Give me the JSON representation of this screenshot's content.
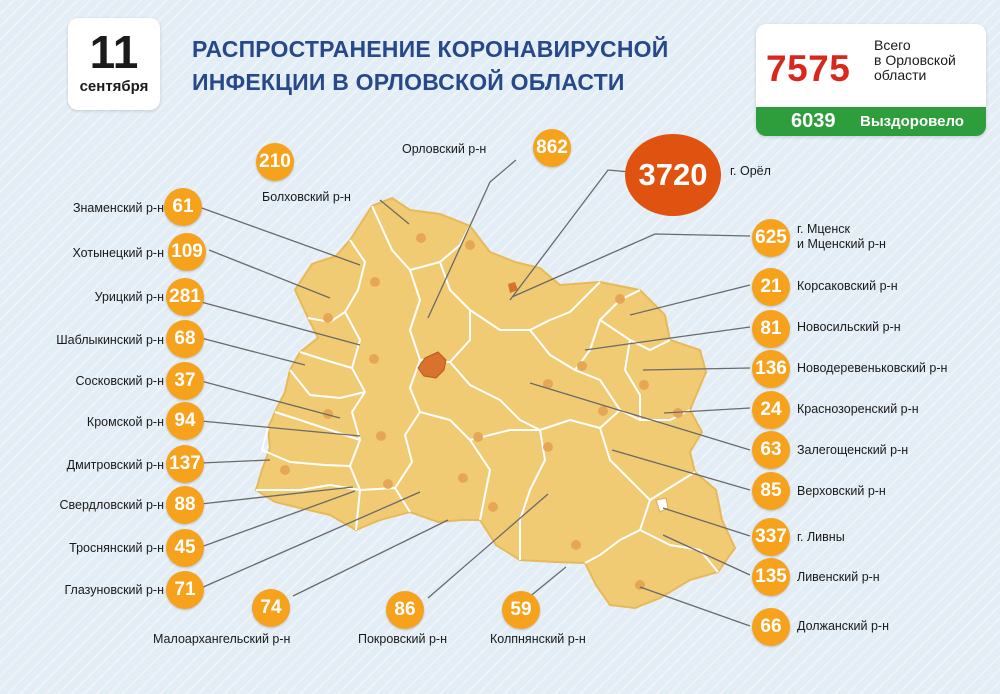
{
  "date": {
    "day": "11",
    "month": "сентября"
  },
  "title": {
    "line1": "РАСПРОСТРАНЕНИЕ КОРОНАВИРУСНОЙ",
    "line2": "ИНФЕКЦИИ В ОРЛОВСКОЙ ОБЛАСТИ"
  },
  "totals": {
    "total": "7575",
    "total_label_1": "Всего",
    "total_label_2": "в Орловской",
    "total_label_3": "области",
    "recovered": "6039",
    "recovered_label": "Выздоровело"
  },
  "colors": {
    "region_fill": "#f0cb73",
    "region_border": "#ffffff",
    "marker": "#f7a21c",
    "oryol_marker": "#e0520f",
    "title": "#27498a",
    "total": "#d8281d",
    "recovered_bg": "#2e9e3c"
  },
  "regions": {
    "znamensky": {
      "name": "Знаменский р-н",
      "count": "61"
    },
    "khotynetsky": {
      "name": "Хотынецкий р-н",
      "count": "109"
    },
    "uritsky": {
      "name": "Урицкий р-н",
      "count": "281"
    },
    "shablykinsky": {
      "name": "Шаблыкинский р-н",
      "count": "68"
    },
    "sosskovsky": {
      "name": "Сосковский р-н",
      "count": "37"
    },
    "kromskoy": {
      "name": "Кромской р-н",
      "count": "94"
    },
    "dmitrovsky": {
      "name": "Дмитровский р-н",
      "count": "137"
    },
    "sverdlovsky": {
      "name": "Свердловский р-н",
      "count": "88"
    },
    "trosnyansky": {
      "name": "Троснянский р-н",
      "count": "45"
    },
    "glazunovsky": {
      "name": "Глазуновский р-н",
      "count": "71"
    },
    "bolkhovsky": {
      "name": "Болховский р-н",
      "count": "210"
    },
    "orlovsky": {
      "name": "Орловский р-н",
      "count": "862"
    },
    "oryol": {
      "name": "г. Орёл",
      "count": "3720"
    },
    "mtsensk": {
      "name": "г. Мценск",
      "name2": "и Мценский р-н",
      "count": "625"
    },
    "korsakovsky": {
      "name": "Корсаковский р-н",
      "count": "21"
    },
    "novosilsky": {
      "name": "Новосильский р-н",
      "count": "81"
    },
    "novoderevenkovsky": {
      "name": "Новодеревеньковский р-н",
      "count": "136"
    },
    "krasnozorensky": {
      "name": "Краснозоренский р-н",
      "count": "24"
    },
    "zaleshchensky": {
      "name": "Залегощенский р-н",
      "count": "63"
    },
    "verkhovsky": {
      "name": "Верховский р-н",
      "count": "85"
    },
    "livny": {
      "name": "г. Ливны",
      "count": "337"
    },
    "livensky": {
      "name": "Ливенский р-н",
      "count": "135"
    },
    "dolzhansky": {
      "name": "Должанский р-н",
      "count": "66"
    },
    "maloarkhangelsky": {
      "name": "Малоархангельский р-н",
      "count": "74"
    },
    "pokrovsky": {
      "name": "Покровский р-н",
      "count": "86"
    },
    "kolpnyansky": {
      "name": "Колпнянский р-н",
      "count": "59"
    }
  }
}
